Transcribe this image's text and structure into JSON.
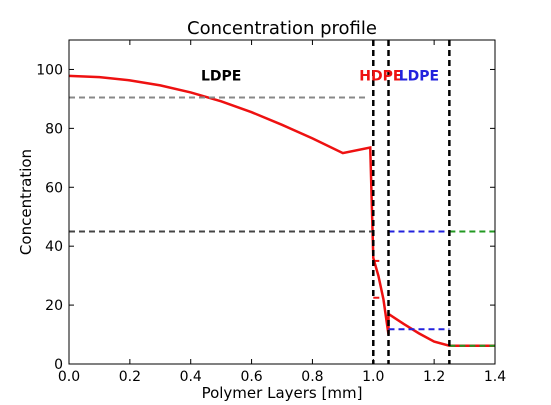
{
  "chart_data": {
    "type": "line",
    "title": "Concentration profile",
    "xlabel": "Polymer Layers [mm]",
    "ylabel": "Concentration",
    "xlim": [
      0.0,
      1.4
    ],
    "ylim": [
      0,
      110
    ],
    "xticks": [
      "0.0",
      "0.2",
      "0.4",
      "0.6",
      "0.8",
      "1.0",
      "1.2",
      "1.4"
    ],
    "yticks": [
      "0",
      "20",
      "40",
      "60",
      "80",
      "100"
    ],
    "grid": false,
    "series": [
      {
        "color": "#ee1111",
        "style": "solid",
        "points": [
          [
            0.0,
            97.8
          ],
          [
            0.1,
            97.4
          ],
          [
            0.2,
            96.3
          ],
          [
            0.3,
            94.6
          ],
          [
            0.4,
            92.2
          ],
          [
            0.5,
            89.2
          ],
          [
            0.6,
            85.5
          ],
          [
            0.7,
            81.2
          ],
          [
            0.8,
            76.6
          ],
          [
            0.9,
            71.6
          ],
          [
            0.99,
            73.5
          ],
          [
            1.0,
            36
          ],
          [
            1.0167,
            30
          ],
          [
            1.0333,
            22
          ],
          [
            1.05,
            10
          ],
          [
            1.05,
            17
          ],
          [
            1.1,
            13.6
          ],
          [
            1.15,
            10.4
          ],
          [
            1.2,
            7.6
          ],
          [
            1.25,
            6.2
          ],
          [
            1.3,
            6.2
          ],
          [
            1.4,
            6.2
          ]
        ]
      },
      {
        "color": "#888888",
        "style": "dashed",
        "points": [
          [
            0.0,
            90.5
          ],
          [
            0.98,
            90.5
          ]
        ]
      },
      {
        "color": "#444444",
        "style": "dashed",
        "points": [
          [
            0.0,
            45
          ],
          [
            1.0,
            45
          ]
        ]
      },
      {
        "color": "#2222dd",
        "style": "dashed",
        "points": [
          [
            1.05,
            45
          ],
          [
            1.25,
            45
          ]
        ]
      },
      {
        "color": "#2222dd",
        "style": "dashed",
        "points": [
          [
            1.05,
            11.8
          ],
          [
            1.25,
            11.8
          ]
        ]
      },
      {
        "color": "#229922",
        "style": "dashed",
        "points": [
          [
            1.25,
            45
          ],
          [
            1.4,
            45
          ]
        ]
      },
      {
        "color": "#229922",
        "style": "dashed",
        "points": [
          [
            1.25,
            6.2
          ],
          [
            1.4,
            6.2
          ]
        ]
      },
      {
        "color": "#ee1111",
        "style": "dashed",
        "points": [
          [
            1.0,
            35
          ],
          [
            1.02,
            35
          ]
        ]
      },
      {
        "color": "#ee1111",
        "style": "dashed",
        "points": [
          [
            1.0,
            22.5
          ],
          [
            1.02,
            22.5
          ]
        ]
      }
    ],
    "vlines": [
      {
        "x": 1.0,
        "color": "#000000"
      },
      {
        "x": 1.05,
        "color": "#000000"
      },
      {
        "x": 1.25,
        "color": "#000000"
      }
    ],
    "annotations": [
      {
        "text": "LDPE",
        "x": 0.5,
        "y": 98,
        "color": "#000000"
      },
      {
        "text": "HDPE",
        "x": 1.025,
        "y": 98,
        "color": "#ee1111"
      },
      {
        "text": "LDPE",
        "x": 1.15,
        "y": 98,
        "color": "#2222dd"
      }
    ]
  }
}
